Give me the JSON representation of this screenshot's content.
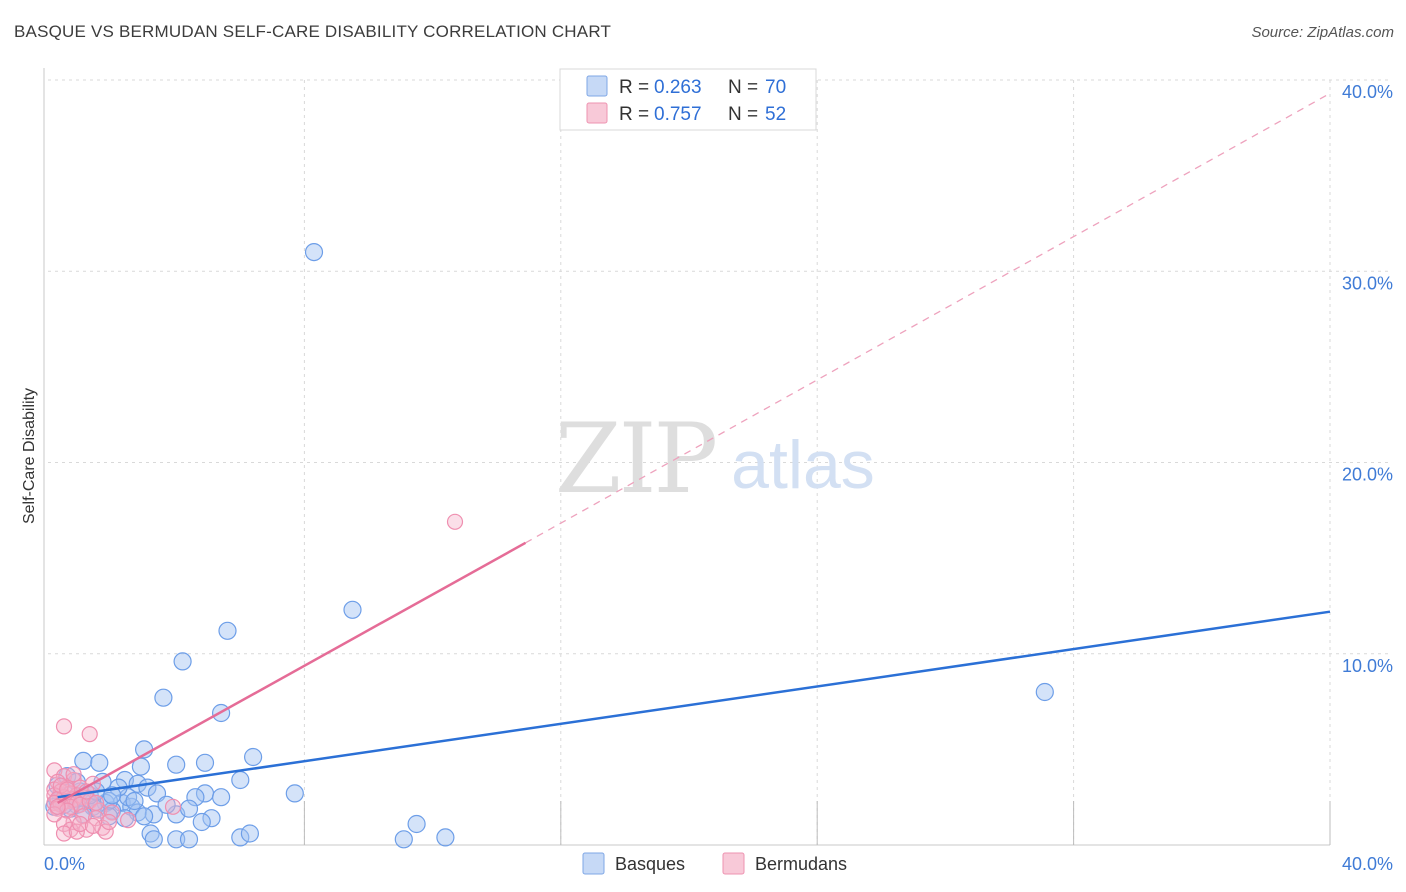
{
  "header": {
    "title": "BASQUE VS BERMUDAN SELF-CARE DISABILITY CORRELATION CHART",
    "source": "Source: ZipAtlas.com"
  },
  "watermark": {
    "zip": "ZIP",
    "atlas": "atlas"
  },
  "legend_top": [
    {
      "r_label": "R = ",
      "r_value": "0.263",
      "n_label": "N = ",
      "n_value": "70",
      "color": "#6d9ee8"
    },
    {
      "r_label": "R = ",
      "r_value": "0.757",
      "n_label": "N = ",
      "n_value": "52",
      "color": "#ef7fa3"
    }
  ],
  "legend_bottom": [
    {
      "label": "Basques",
      "color": "#6d9ee8"
    },
    {
      "label": "Bermudans",
      "color": "#ef7fa3"
    }
  ],
  "chart_data": {
    "type": "scatter",
    "title": "BASQUE VS BERMUDAN SELF-CARE DISABILITY CORRELATION CHART",
    "xlabel": "",
    "ylabel": "Self-Care Disability",
    "xlim": [
      0,
      40
    ],
    "ylim": [
      0,
      40
    ],
    "x_tick_labels": [
      "0.0%",
      "40.0%"
    ],
    "y_ticks": [
      10,
      20,
      30,
      40
    ],
    "y_tick_labels": [
      "10.0%",
      "20.0%",
      "30.0%",
      "40.0%"
    ],
    "grid": true,
    "legend_position": "top-center",
    "series": [
      {
        "name": "Basques",
        "color": "#6d9ee8",
        "trend": {
          "x": [
            0.3,
            40
          ],
          "y": [
            2.5,
            12.2
          ],
          "style": "solid"
        },
        "points": [
          [
            31.1,
            8.0
          ],
          [
            8.3,
            31.0
          ],
          [
            9.5,
            12.3
          ],
          [
            5.6,
            11.2
          ],
          [
            4.2,
            9.6
          ],
          [
            5.4,
            6.9
          ],
          [
            3.6,
            7.7
          ],
          [
            6.4,
            4.6
          ],
          [
            3.0,
            5.0
          ],
          [
            4.9,
            4.3
          ],
          [
            4.0,
            4.2
          ],
          [
            1.1,
            4.4
          ],
          [
            1.6,
            4.3
          ],
          [
            2.9,
            4.1
          ],
          [
            2.4,
            3.4
          ],
          [
            2.8,
            3.2
          ],
          [
            3.1,
            3.0
          ],
          [
            6.0,
            3.4
          ],
          [
            7.7,
            2.7
          ],
          [
            3.4,
            2.7
          ],
          [
            4.9,
            2.7
          ],
          [
            5.4,
            2.5
          ],
          [
            4.6,
            2.5
          ],
          [
            1.2,
            2.4
          ],
          [
            1.8,
            2.2
          ],
          [
            2.3,
            2.2
          ],
          [
            2.6,
            2.0
          ],
          [
            0.9,
            2.1
          ],
          [
            1.4,
            2.0
          ],
          [
            0.7,
            1.9
          ],
          [
            2.0,
            1.8
          ],
          [
            2.8,
            1.7
          ],
          [
            3.3,
            1.6
          ],
          [
            2.4,
            1.4
          ],
          [
            3.0,
            1.5
          ],
          [
            4.0,
            1.6
          ],
          [
            5.1,
            1.4
          ],
          [
            4.8,
            1.2
          ],
          [
            1.5,
            1.9
          ],
          [
            1.9,
            2.3
          ],
          [
            0.6,
            2.6
          ],
          [
            1.0,
            2.8
          ],
          [
            0.4,
            2.5
          ],
          [
            0.3,
            2.3
          ],
          [
            0.5,
            2.1
          ],
          [
            0.8,
            2.4
          ],
          [
            1.3,
            2.6
          ],
          [
            2.5,
            2.5
          ],
          [
            2.2,
            3.0
          ],
          [
            1.7,
            3.3
          ],
          [
            3.2,
            0.6
          ],
          [
            4.0,
            0.3
          ],
          [
            3.3,
            0.3
          ],
          [
            4.4,
            0.3
          ],
          [
            6.0,
            0.4
          ],
          [
            6.3,
            0.6
          ],
          [
            11.1,
            0.3
          ],
          [
            11.5,
            1.1
          ],
          [
            12.4,
            0.4
          ],
          [
            0.3,
            3.1
          ],
          [
            0.6,
            3.6
          ],
          [
            0.9,
            3.3
          ],
          [
            1.5,
            2.8
          ],
          [
            2.0,
            2.6
          ],
          [
            3.7,
            2.1
          ],
          [
            4.4,
            1.9
          ],
          [
            1.1,
            1.6
          ],
          [
            0.2,
            2.0
          ],
          [
            2.7,
            2.3
          ],
          [
            1.9,
            1.5
          ]
        ]
      },
      {
        "name": "Bermudans",
        "color": "#ef7fa3",
        "trend": {
          "x": [
            0.3,
            14.9
          ],
          "y": [
            2.2,
            15.8
          ],
          "style": "solid",
          "extension_x": [
            14.9,
            40
          ],
          "extension_y": [
            15.8,
            39.3
          ],
          "extension_style": "dashed"
        },
        "points": [
          [
            12.7,
            16.9
          ],
          [
            0.5,
            6.2
          ],
          [
            1.3,
            5.8
          ],
          [
            0.2,
            3.9
          ],
          [
            0.5,
            3.6
          ],
          [
            0.8,
            3.4
          ],
          [
            1.4,
            3.2
          ],
          [
            0.3,
            3.3
          ],
          [
            0.6,
            3.0
          ],
          [
            1.0,
            3.0
          ],
          [
            0.2,
            2.9
          ],
          [
            0.4,
            2.8
          ],
          [
            0.7,
            2.7
          ],
          [
            0.9,
            2.6
          ],
          [
            0.2,
            2.6
          ],
          [
            0.5,
            2.5
          ],
          [
            0.8,
            2.4
          ],
          [
            1.1,
            2.5
          ],
          [
            0.3,
            2.4
          ],
          [
            0.6,
            2.3
          ],
          [
            0.9,
            2.2
          ],
          [
            0.2,
            2.2
          ],
          [
            0.4,
            2.1
          ],
          [
            0.7,
            2.0
          ],
          [
            1.0,
            2.1
          ],
          [
            1.3,
            2.3
          ],
          [
            0.3,
            1.9
          ],
          [
            0.6,
            1.8
          ],
          [
            1.6,
            1.8
          ],
          [
            2.0,
            1.7
          ],
          [
            1.1,
            1.5
          ],
          [
            1.5,
            1.4
          ],
          [
            0.8,
            1.2
          ],
          [
            0.5,
            1.1
          ],
          [
            1.7,
            0.9
          ],
          [
            0.7,
            0.8
          ],
          [
            1.2,
            0.8
          ],
          [
            1.8,
            0.7
          ],
          [
            0.5,
            0.6
          ],
          [
            0.9,
            0.7
          ],
          [
            1.0,
            1.1
          ],
          [
            1.4,
            1.0
          ],
          [
            3.9,
            2.0
          ],
          [
            0.2,
            1.6
          ],
          [
            0.4,
            3.1
          ],
          [
            0.8,
            3.7
          ],
          [
            1.2,
            2.8
          ],
          [
            1.5,
            2.2
          ],
          [
            0.6,
            2.9
          ],
          [
            0.3,
            2.0
          ],
          [
            2.5,
            1.3
          ],
          [
            1.9,
            1.2
          ]
        ]
      }
    ]
  }
}
